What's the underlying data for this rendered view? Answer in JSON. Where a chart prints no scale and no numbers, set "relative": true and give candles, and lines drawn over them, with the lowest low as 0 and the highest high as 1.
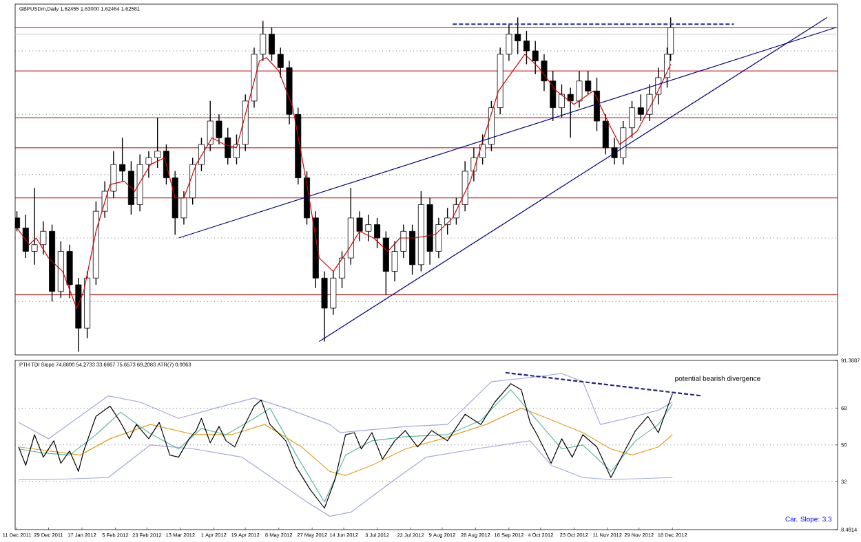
{
  "chart_data": [
    {
      "type": "candlestick",
      "title": "GBPUSDm,Daily 1.62455 1.63000 1.62464 1.62581",
      "relative": true,
      "xlim": [
        "2011-12-10",
        "2013-03-22"
      ],
      "ref_lines": [
        {
          "axis": "y",
          "value": 0.97,
          "color": "#c00000",
          "line_style": "solid"
        },
        {
          "axis": "y",
          "value": 0.84,
          "color": "#c00000",
          "line_style": "solid"
        },
        {
          "axis": "y",
          "value": 0.7,
          "color": "#c00000",
          "line_style": "solid"
        },
        {
          "axis": "y",
          "value": 0.61,
          "color": "#c00000",
          "line_style": "solid"
        },
        {
          "axis": "y",
          "value": 0.46,
          "color": "#c00000",
          "line_style": "solid"
        },
        {
          "axis": "y",
          "value": 0.17,
          "color": "#c00000",
          "line_style": "solid"
        },
        {
          "axis": "y",
          "value": 0.95,
          "color": "#c8c8c8",
          "line_style": "solid"
        },
        {
          "axis": "y",
          "value": 0.9,
          "color": "#707070",
          "line_style": "dotted"
        },
        {
          "axis": "y",
          "value": 0.71,
          "color": "#707070",
          "line_style": "dotted"
        },
        {
          "axis": "y",
          "value": 0.53,
          "color": "#707070",
          "line_style": "dotted"
        },
        {
          "axis": "y",
          "value": 0.34,
          "color": "#707070",
          "line_style": "dotted"
        },
        {
          "axis": "y",
          "value": 0.15,
          "color": "#707070",
          "line_style": "dotted"
        }
      ],
      "series": [
        {
          "type": "candlestick",
          "color": "#000000",
          "x": [
            "2011-12-11",
            "2011-12-16",
            "2011-12-21",
            "2011-12-26",
            "2011-12-31",
            "2012-01-05",
            "2012-01-10",
            "2012-01-15",
            "2012-01-20",
            "2012-01-25",
            "2012-01-30",
            "2012-02-04",
            "2012-02-09",
            "2012-02-14",
            "2012-02-19",
            "2012-02-24",
            "2012-02-29",
            "2012-03-05",
            "2012-03-10",
            "2012-03-15",
            "2012-03-20",
            "2012-03-25",
            "2012-03-30",
            "2012-04-04",
            "2012-04-09",
            "2012-04-14",
            "2012-04-19",
            "2012-04-24",
            "2012-04-29",
            "2012-05-04",
            "2012-05-09",
            "2012-05-14",
            "2012-05-19",
            "2012-05-24",
            "2012-05-29",
            "2012-06-03",
            "2012-06-08",
            "2012-06-13",
            "2012-06-18",
            "2012-06-23",
            "2012-06-28",
            "2012-07-03",
            "2012-07-08",
            "2012-07-13",
            "2012-07-18",
            "2012-07-23",
            "2012-07-28",
            "2012-08-02",
            "2012-08-07",
            "2012-08-12",
            "2012-08-17",
            "2012-08-22",
            "2012-08-27",
            "2012-09-01",
            "2012-09-06",
            "2012-09-11",
            "2012-09-16",
            "2012-09-21",
            "2012-09-26",
            "2012-10-01",
            "2012-10-06",
            "2012-10-11",
            "2012-10-16",
            "2012-10-21",
            "2012-10-26",
            "2012-10-31",
            "2012-11-05",
            "2012-11-10",
            "2012-11-15",
            "2012-11-20",
            "2012-11-25",
            "2012-11-30",
            "2012-12-05",
            "2012-12-10",
            "2012-12-15",
            "2012-12-17"
          ],
          "ohlc": [
            [
              0.4,
              0.42,
              0.36,
              0.37
            ],
            [
              0.37,
              0.41,
              0.28,
              0.3
            ],
            [
              0.3,
              0.49,
              0.26,
              0.32
            ],
            [
              0.32,
              0.39,
              0.29,
              0.36
            ],
            [
              0.36,
              0.38,
              0.15,
              0.18
            ],
            [
              0.18,
              0.33,
              0.16,
              0.3
            ],
            [
              0.3,
              0.32,
              0.16,
              0.2
            ],
            [
              0.2,
              0.22,
              0,
              0.07
            ],
            [
              0.07,
              0.24,
              0.04,
              0.22
            ],
            [
              0.22,
              0.45,
              0.2,
              0.42
            ],
            [
              0.42,
              0.51,
              0.4,
              0.48
            ],
            [
              0.48,
              0.6,
              0.46,
              0.56
            ],
            [
              0.56,
              0.64,
              0.51,
              0.54
            ],
            [
              0.54,
              0.57,
              0.41,
              0.44
            ],
            [
              0.44,
              0.59,
              0.42,
              0.56
            ],
            [
              0.56,
              0.6,
              0.52,
              0.58
            ],
            [
              0.58,
              0.7,
              0.55,
              0.6
            ],
            [
              0.6,
              0.62,
              0.5,
              0.52
            ],
            [
              0.52,
              0.54,
              0.35,
              0.4
            ],
            [
              0.4,
              0.48,
              0.38,
              0.46
            ],
            [
              0.46,
              0.58,
              0.44,
              0.56
            ],
            [
              0.56,
              0.64,
              0.54,
              0.62
            ],
            [
              0.62,
              0.75,
              0.6,
              0.69
            ],
            [
              0.69,
              0.71,
              0.62,
              0.64
            ],
            [
              0.64,
              0.67,
              0.56,
              0.58
            ],
            [
              0.58,
              0.65,
              0.56,
              0.62
            ],
            [
              0.62,
              0.77,
              0.6,
              0.75
            ],
            [
              0.75,
              0.91,
              0.73,
              0.89
            ],
            [
              0.89,
              0.99,
              0.87,
              0.95
            ],
            [
              0.95,
              0.97,
              0.87,
              0.89
            ],
            [
              0.89,
              0.91,
              0.82,
              0.85
            ],
            [
              0.85,
              0.87,
              0.68,
              0.71
            ],
            [
              0.71,
              0.73,
              0.5,
              0.52
            ],
            [
              0.52,
              0.54,
              0.38,
              0.4
            ],
            [
              0.4,
              0.42,
              0.19,
              0.22
            ],
            [
              0.22,
              0.24,
              0.03,
              0.13
            ],
            [
              0.13,
              0.24,
              0.11,
              0.22
            ],
            [
              0.22,
              0.3,
              0.19,
              0.28
            ],
            [
              0.28,
              0.49,
              0.26,
              0.4
            ],
            [
              0.4,
              0.42,
              0.33,
              0.36
            ],
            [
              0.36,
              0.41,
              0.33,
              0.38
            ],
            [
              0.38,
              0.4,
              0.31,
              0.34
            ],
            [
              0.34,
              0.36,
              0.17,
              0.24
            ],
            [
              0.24,
              0.33,
              0.21,
              0.3
            ],
            [
              0.3,
              0.38,
              0.28,
              0.36
            ],
            [
              0.36,
              0.38,
              0.23,
              0.26
            ],
            [
              0.26,
              0.48,
              0.24,
              0.44
            ],
            [
              0.44,
              0.46,
              0.26,
              0.3
            ],
            [
              0.3,
              0.4,
              0.28,
              0.38
            ],
            [
              0.38,
              0.43,
              0.35,
              0.4
            ],
            [
              0.4,
              0.46,
              0.38,
              0.44
            ],
            [
              0.44,
              0.57,
              0.42,
              0.54
            ],
            [
              0.54,
              0.61,
              0.51,
              0.58
            ],
            [
              0.58,
              0.65,
              0.56,
              0.62
            ],
            [
              0.62,
              0.75,
              0.6,
              0.73
            ],
            [
              0.73,
              0.91,
              0.71,
              0.89
            ],
            [
              0.89,
              0.98,
              0.87,
              0.95
            ],
            [
              0.95,
              1,
              0.89,
              0.93
            ],
            [
              0.93,
              0.96,
              0.86,
              0.9
            ],
            [
              0.9,
              0.93,
              0.83,
              0.87
            ],
            [
              0.87,
              0.89,
              0.78,
              0.81
            ],
            [
              0.81,
              0.84,
              0.69,
              0.73
            ],
            [
              0.73,
              0.8,
              0.7,
              0.77
            ],
            [
              0.77,
              0.79,
              0.64,
              0.75
            ],
            [
              0.75,
              0.84,
              0.73,
              0.81
            ],
            [
              0.81,
              0.84,
              0.77,
              0.78
            ],
            [
              0.78,
              0.82,
              0.66,
              0.69
            ],
            [
              0.69,
              0.71,
              0.59,
              0.61
            ],
            [
              0.61,
              0.64,
              0.56,
              0.58
            ],
            [
              0.58,
              0.69,
              0.56,
              0.67
            ],
            [
              0.67,
              0.75,
              0.64,
              0.73
            ],
            [
              0.73,
              0.77,
              0.69,
              0.71
            ],
            [
              0.71,
              0.8,
              0.69,
              0.77
            ],
            [
              0.77,
              0.85,
              0.74,
              0.82
            ],
            [
              0.82,
              0.91,
              0.79,
              0.89
            ],
            [
              0.89,
              1,
              0.87,
              0.97
            ]
          ]
        },
        {
          "type": "line",
          "color": "#d00000",
          "x": [
            "2011-12-11",
            "2011-12-18",
            "2011-12-22",
            "2011-12-29",
            "2012-01-06",
            "2012-01-14",
            "2012-01-18",
            "2012-01-25",
            "2012-02-02",
            "2012-02-10",
            "2012-02-16",
            "2012-02-25",
            "2012-03-04",
            "2012-03-10",
            "2012-03-15",
            "2012-03-22",
            "2012-03-31",
            "2012-04-07",
            "2012-04-14",
            "2012-04-19",
            "2012-04-27",
            "2012-05-01",
            "2012-05-08",
            "2012-05-16",
            "2012-05-24",
            "2012-05-31",
            "2012-06-08",
            "2012-06-16",
            "2012-06-23",
            "2012-07-01",
            "2012-07-09",
            "2012-07-16",
            "2012-07-24",
            "2012-08-05",
            "2012-08-15",
            "2012-08-25",
            "2012-09-10",
            "2012-09-25",
            "2012-10-03",
            "2012-10-13",
            "2012-10-23",
            "2012-11-03",
            "2012-11-13",
            "2012-11-18",
            "2012-11-28",
            "2012-12-08",
            "2012-12-17"
          ],
          "values": [
            0.37,
            0.32,
            0.34,
            0.28,
            0.24,
            0.13,
            0.18,
            0.36,
            0.5,
            0.51,
            0.48,
            0.56,
            0.58,
            0.46,
            0.46,
            0.56,
            0.64,
            0.62,
            0.61,
            0.71,
            0.87,
            0.88,
            0.84,
            0.73,
            0.5,
            0.28,
            0.24,
            0.3,
            0.36,
            0.34,
            0.3,
            0.34,
            0.34,
            0.35,
            0.4,
            0.51,
            0.78,
            0.89,
            0.85,
            0.78,
            0.74,
            0.78,
            0.67,
            0.62,
            0.66,
            0.76,
            0.86
          ]
        },
        {
          "type": "line",
          "color": "#000080",
          "x": [
            "2012-03-12",
            "2013-03-21"
          ],
          "values": [
            0.34,
            0.97
          ]
        },
        {
          "type": "line",
          "color": "#000080",
          "x": [
            "2012-05-31",
            "2013-03-16"
          ],
          "values": [
            0.03,
            1
          ]
        },
        {
          "type": "line",
          "color": "#3040a0",
          "line_style": "dashed",
          "x": [
            "2012-08-15",
            "2013-01-22"
          ],
          "values": [
            0.98,
            0.98
          ]
        }
      ]
    },
    {
      "type": "line",
      "title": "PTH TDI Slope 74.8800 54.2733 33.6667 75.6573 69.2083 ATR(7) 0.0063",
      "annotations": [
        "potential bearish divergence",
        "Car. Slope: 3.3"
      ],
      "xlim": [
        "2011-12-10",
        "2013-03-22"
      ],
      "xticks": [
        {
          "value": "2011-12-11",
          "label": "11 Dec 2011"
        },
        {
          "value": "2011-12-29",
          "label": "29 Dec 2011"
        },
        {
          "value": "2012-01-17",
          "label": "17 Jan 2012"
        },
        {
          "value": "2012-02-05",
          "label": "5 Feb 2012"
        },
        {
          "value": "2012-02-23",
          "label": "23 Feb 2012"
        },
        {
          "value": "2012-03-13",
          "label": "13 Mar 2012"
        },
        {
          "value": "2012-04-01",
          "label": "1 Apr 2012"
        },
        {
          "value": "2012-04-19",
          "label": "19 Apr 2012"
        },
        {
          "value": "2012-05-08",
          "label": "8 May 2012"
        },
        {
          "value": "2012-05-27",
          "label": "27 May 2012"
        },
        {
          "value": "2012-06-14",
          "label": "14 Jun 2012"
        },
        {
          "value": "2012-07-03",
          "label": "3 Jul 2012"
        },
        {
          "value": "2012-07-22",
          "label": "22 Jul 2012"
        },
        {
          "value": "2012-08-09",
          "label": "9 Aug 2012"
        },
        {
          "value": "2012-08-28",
          "label": "28 Aug 2012"
        },
        {
          "value": "2012-09-16",
          "label": "16 Sep 2012"
        },
        {
          "value": "2012-10-04",
          "label": "4 Oct 2012"
        },
        {
          "value": "2012-10-23",
          "label": "23 Oct 2012"
        },
        {
          "value": "2012-11-11",
          "label": "11 Nov 2012"
        },
        {
          "value": "2012-11-29",
          "label": "29 Nov 2012"
        },
        {
          "value": "2012-12-18",
          "label": "18 Dec 2012"
        }
      ],
      "ylim": [
        8.4614,
        91.3887
      ],
      "yticks": [
        8.4614,
        32,
        50,
        68,
        91.3887
      ],
      "ref_lines": [
        {
          "axis": "y",
          "value": 68,
          "color": "#707070",
          "line_style": "dotted"
        },
        {
          "axis": "y",
          "value": 50,
          "color": "#707070",
          "line_style": "dotted"
        },
        {
          "axis": "y",
          "value": 32,
          "color": "#707070",
          "line_style": "dotted"
        }
      ],
      "series": [
        {
          "color": "#a0a8dc",
          "x": [
            "2011-12-12",
            "2011-12-29",
            "2012-02-01",
            "2012-02-19",
            "2012-03-12",
            "2012-04-02",
            "2012-04-24",
            "2012-05-12",
            "2012-06-06",
            "2012-06-12",
            "2012-06-24",
            "2012-07-19",
            "2012-08-12",
            "2012-09-06",
            "2012-09-28",
            "2012-10-16",
            "2012-10-28",
            "2012-11-07",
            "2012-11-22",
            "2012-12-10",
            "2012-12-18"
          ],
          "values": [
            61,
            53,
            74,
            71,
            63,
            68,
            73,
            68,
            60,
            56,
            57,
            59,
            60,
            81,
            83,
            85,
            81,
            60,
            63,
            67,
            71
          ]
        },
        {
          "color": "#a0a8dc",
          "x": [
            "2011-12-12",
            "2011-12-29",
            "2012-02-01",
            "2012-02-25",
            "2012-03-21",
            "2012-04-17",
            "2012-05-24",
            "2012-06-06",
            "2012-06-18",
            "2012-07-13",
            "2012-07-31",
            "2012-08-28",
            "2012-09-28",
            "2012-10-10",
            "2012-10-28",
            "2012-11-13",
            "2012-12-18"
          ],
          "values": [
            33,
            33,
            34,
            50,
            48,
            44,
            22,
            15,
            17,
            33,
            44,
            48,
            52,
            40,
            34,
            33,
            34
          ]
        },
        {
          "color": "#e0a020",
          "x": [
            "2011-12-12",
            "2012-01-16",
            "2012-02-02",
            "2012-02-25",
            "2012-03-21",
            "2012-04-11",
            "2012-04-30",
            "2012-05-21",
            "2012-06-06",
            "2012-06-15",
            "2012-06-30",
            "2012-07-19",
            "2012-08-09",
            "2012-09-03",
            "2012-09-23",
            "2012-10-08",
            "2012-10-28",
            "2012-11-13",
            "2012-11-25",
            "2012-12-10",
            "2012-12-18"
          ],
          "values": [
            49,
            45,
            53,
            60,
            55,
            55,
            60,
            49,
            37,
            35,
            40,
            48,
            53,
            60,
            68,
            63,
            56,
            48,
            45,
            49,
            55
          ]
        },
        {
          "color": "#5cb8a0",
          "x": [
            "2011-12-12",
            "2011-12-26",
            "2012-01-10",
            "2012-01-25",
            "2012-02-08",
            "2012-02-24",
            "2012-03-12",
            "2012-03-25",
            "2012-04-08",
            "2012-04-24",
            "2012-05-03",
            "2012-05-18",
            "2012-06-03",
            "2012-06-15",
            "2012-06-30",
            "2012-07-19",
            "2012-08-12",
            "2012-08-31",
            "2012-09-17",
            "2012-09-28",
            "2012-10-16",
            "2012-10-28",
            "2012-11-13",
            "2012-11-27",
            "2012-12-10",
            "2012-12-18"
          ],
          "values": [
            48,
            46,
            45,
            55,
            66,
            56,
            48,
            58,
            55,
            63,
            68,
            45,
            22,
            45,
            52,
            54,
            55,
            62,
            77,
            66,
            48,
            50,
            37,
            52,
            60,
            70
          ]
        },
        {
          "color": "#000000",
          "x": [
            "2011-12-12",
            "2011-12-16",
            "2011-12-21",
            "2011-12-26",
            "2012-01-01",
            "2012-01-05",
            "2012-01-10",
            "2012-01-15",
            "2012-01-18",
            "2012-01-25",
            "2012-02-02",
            "2012-02-08",
            "2012-02-13",
            "2012-02-17",
            "2012-02-24",
            "2012-03-01",
            "2012-03-07",
            "2012-03-12",
            "2012-03-18",
            "2012-03-22",
            "2012-03-25",
            "2012-03-30",
            "2012-04-04",
            "2012-04-08",
            "2012-04-13",
            "2012-04-17",
            "2012-04-24",
            "2012-04-28",
            "2012-05-03",
            "2012-05-12",
            "2012-05-18",
            "2012-05-26",
            "2012-06-03",
            "2012-06-09",
            "2012-06-15",
            "2012-06-20",
            "2012-06-24",
            "2012-06-30",
            "2012-07-06",
            "2012-07-13",
            "2012-07-19",
            "2012-07-26",
            "2012-08-03",
            "2012-08-12",
            "2012-08-22",
            "2012-08-31",
            "2012-09-08",
            "2012-09-17",
            "2012-09-23",
            "2012-09-28",
            "2012-10-02",
            "2012-10-10",
            "2012-10-16",
            "2012-10-22",
            "2012-10-28",
            "2012-11-05",
            "2012-11-13",
            "2012-11-19",
            "2012-11-27",
            "2012-12-04",
            "2012-12-10",
            "2012-12-15",
            "2012-12-18"
          ],
          "values": [
            49,
            40,
            55,
            44,
            52,
            41,
            47,
            37,
            47,
            64,
            69,
            61,
            53,
            60,
            53,
            61,
            45,
            44,
            53,
            57,
            63,
            51,
            59,
            52,
            49,
            57,
            69,
            72,
            60,
            52,
            39,
            28,
            19,
            33,
            55,
            56,
            48,
            56,
            43,
            52,
            57,
            49,
            57,
            52,
            65,
            60,
            71,
            80,
            77,
            61,
            55,
            41,
            53,
            44,
            55,
            49,
            34,
            44,
            57,
            64,
            56,
            68,
            75
          ]
        },
        {
          "color": "#202080",
          "line_style": "dashed",
          "x": [
            "2012-09-14",
            "2013-01-04"
          ],
          "values": [
            85.4,
            74.0
          ]
        }
      ]
    }
  ]
}
